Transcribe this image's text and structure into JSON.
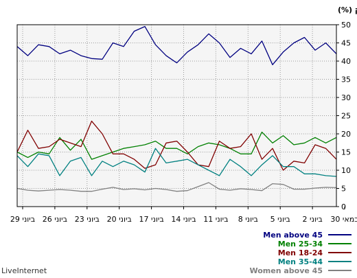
{
  "chart_data": {
    "type": "line",
    "ylabel": "חלק (%)",
    "ylim": [
      0,
      50
    ],
    "yticks": [
      "0",
      "5",
      "10",
      "15",
      "20",
      "25",
      "30",
      "35",
      "40",
      "45",
      "50"
    ],
    "x_tick_labels": [
      "29 ביוני",
      "26 ביוני",
      "23 ביוני",
      "20 ביוני",
      "17 ביוני",
      "14 ביוני",
      "11 ביוני",
      "8 ביוני",
      "5 ביוני",
      "2 ביוני",
      "30 במאי"
    ],
    "grid": true,
    "legend_position": "bottom-right",
    "series": [
      {
        "name": "Men above 45",
        "color": "#000080",
        "values": [
          44,
          41.5,
          44.5,
          44,
          42,
          43,
          41.5,
          40.7,
          40.5,
          45,
          44,
          48.2,
          49.5,
          44.5,
          41.5,
          39.5,
          42.5,
          44.5,
          47.5,
          45,
          41,
          43.5,
          42,
          45.5,
          39,
          42.5,
          45,
          46.5,
          43,
          45,
          42
        ]
      },
      {
        "name": "Men 25-34",
        "color": "#008000",
        "values": [
          15,
          13.5,
          15,
          14.5,
          19,
          15.5,
          18.5,
          13,
          14,
          15,
          16,
          16.5,
          17,
          18,
          16,
          16,
          14.5,
          16.5,
          17.5,
          17,
          16,
          14.5,
          14.5,
          20.5,
          17.5,
          19.5,
          17,
          17.5,
          19,
          17.5,
          19
        ]
      },
      {
        "name": "Men 18-24",
        "color": "#800000",
        "values": [
          15,
          21,
          16,
          16.5,
          18.5,
          17.5,
          16.5,
          23.5,
          20,
          14.5,
          14.5,
          13,
          10.5,
          11.5,
          17.5,
          18,
          15,
          11.5,
          11,
          18,
          16,
          16.5,
          20,
          13,
          16,
          10,
          12.5,
          12,
          17,
          16,
          13
        ]
      },
      {
        "name": "Men 35-44",
        "color": "#008080",
        "values": [
          14,
          11,
          14.5,
          14,
          8.5,
          12.5,
          13.5,
          8.5,
          12.5,
          11,
          12.5,
          11.5,
          9.5,
          16,
          12,
          12.5,
          13,
          11.5,
          10,
          8.5,
          13,
          11,
          8.5,
          11.5,
          14,
          11,
          11,
          9,
          9,
          8.5,
          8.3
        ]
      },
      {
        "name": "Women above 45",
        "color": "#808080",
        "values": [
          5,
          4.5,
          4.3,
          4.5,
          4.7,
          4.5,
          4.2,
          4.2,
          4.8,
          5.3,
          4.7,
          4.9,
          4.6,
          5,
          4.7,
          4.2,
          4.4,
          5.5,
          6.6,
          4.8,
          4.5,
          4.9,
          4.7,
          4.4,
          6.3,
          6.1,
          4.8,
          4.8,
          5.1,
          5.3,
          5.2
        ]
      }
    ]
  },
  "brand": "LiveInternet"
}
